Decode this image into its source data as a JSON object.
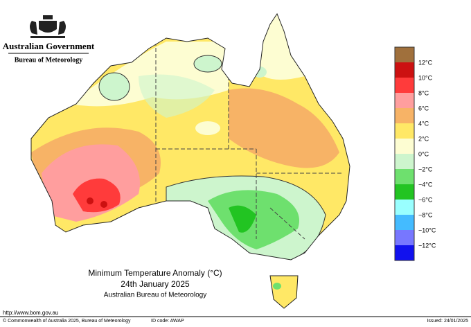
{
  "header": {
    "government": "Australian Government",
    "agency": "Bureau of Meteorology"
  },
  "map": {
    "title": "Minimum Temperature Anomaly (°C)",
    "date": "24th January 2025",
    "source": "Australian Bureau of Meteorology"
  },
  "legend": {
    "labels": [
      "12°C",
      "10°C",
      "8°C",
      "6°C",
      "4°C",
      "2°C",
      "0°C",
      "−2°C",
      "−4°C",
      "−6°C",
      "−8°C",
      "−10°C",
      "−12°C"
    ],
    "colors": [
      "#a0703c",
      "#cc1111",
      "#ff3b3b",
      "#ff9e9e",
      "#f7b366",
      "#ffe866",
      "#fdfdd2",
      "#cdf5cd",
      "#6ee06e",
      "#22c422",
      "#99ffff",
      "#44bbff",
      "#7777ff",
      "#1111ee"
    ]
  },
  "footer": {
    "url": "http://www.bom.gov.au",
    "copyright": "© Commonwealth of Australia 2025, Bureau of Meteorology",
    "id": "ID code: AWAP",
    "issued": "Issued: 24/01/2025"
  }
}
